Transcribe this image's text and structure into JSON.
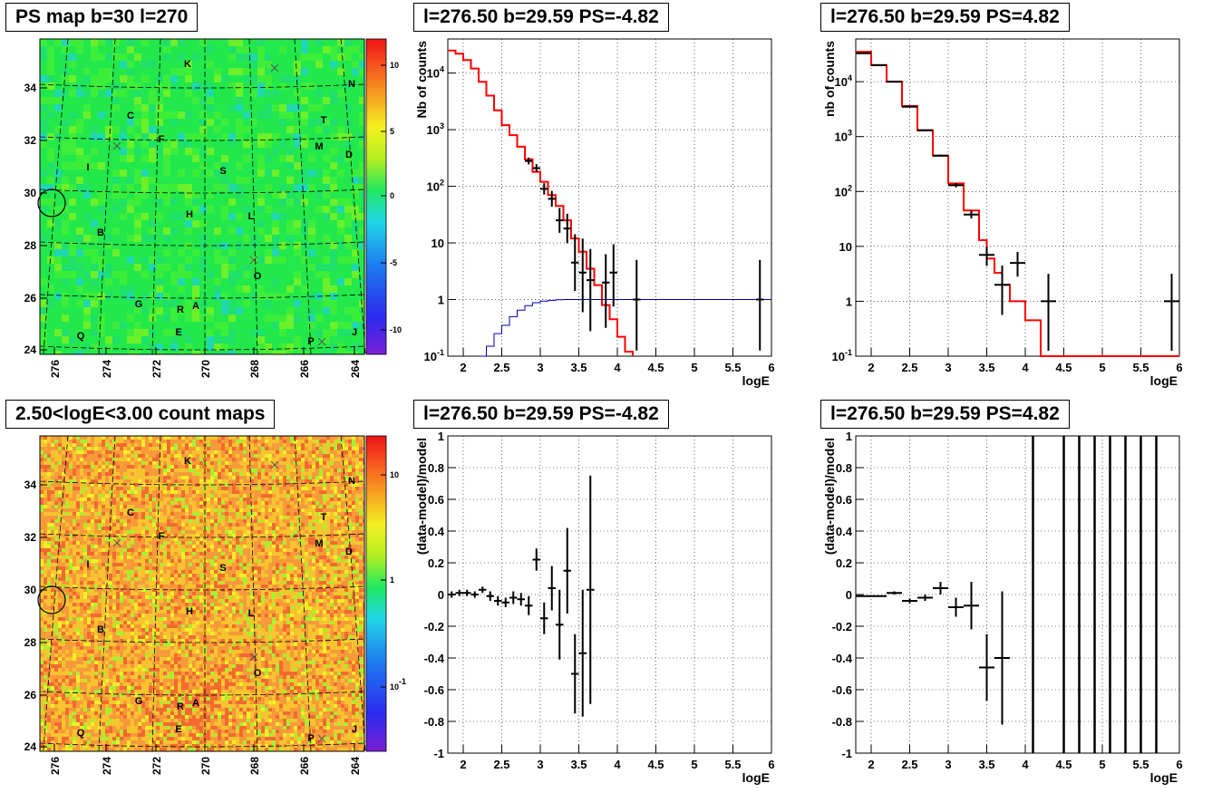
{
  "colors": {
    "fit_red": "#ff0000",
    "model_blue": "#0000aa",
    "data_black": "#000000",
    "map_green": "#1ee84a",
    "count_orange": "#f7a43b"
  },
  "panels": [
    {
      "id": "ps-map",
      "title": "PS map b=30 l=270",
      "chart_data": {
        "type": "heatmap",
        "xlabel": "",
        "ylabel": "",
        "x_ticks": [
          "276",
          "274",
          "272",
          "270",
          "268",
          "266",
          "264"
        ],
        "y_ticks": [
          "24",
          "26",
          "28",
          "30",
          "32",
          "34"
        ],
        "colorbar_ticks": [
          "10",
          "5",
          "0",
          "-5",
          "-10"
        ],
        "colorbar_range": [
          -12,
          12
        ],
        "dominant_value": 1,
        "grid": "dashed",
        "source_labels": [
          "K",
          "N",
          "C",
          "T",
          "F",
          "M",
          "D",
          "I",
          "S",
          "B",
          "H",
          "L",
          "O",
          "G",
          "R",
          "A",
          "E",
          "Q",
          "P",
          "J"
        ],
        "markers": [
          {
            "l": 276.5,
            "b": 29.59,
            "shape": "circle"
          }
        ]
      }
    },
    {
      "id": "spectrum-1",
      "title": "l=276.50 b=29.59 PS=-4.82",
      "chart_data": {
        "type": "line",
        "xlabel": "logE",
        "ylabel": "Nb of counts",
        "xlim": [
          1.8,
          6.0
        ],
        "ylim": [
          0.1,
          40000
        ],
        "y_scale": "log",
        "x_ticks": [
          "2",
          "2.5",
          "3",
          "3.5",
          "4",
          "4.5",
          "5",
          "5.5",
          "6"
        ],
        "y_ticks": [
          "10^{-1}",
          "1",
          "10",
          "10^{2}",
          "10^{3}",
          "10^{4}"
        ],
        "grid": "dotted",
        "series": [
          {
            "kind": "step",
            "color": "red",
            "x": [
              1.8,
              1.9,
              2.0,
              2.1,
              2.2,
              2.3,
              2.4,
              2.5,
              2.6,
              2.7,
              2.8,
              2.9,
              3.0,
              3.1,
              3.2,
              3.3,
              3.4,
              3.5,
              3.6,
              3.7,
              3.8,
              3.9,
              4.0,
              4.1,
              4.2
            ],
            "y": [
              25000,
              22000,
              17000,
              12000,
              7000,
              4000,
              2200,
              1200,
              800,
              500,
              300,
              180,
              120,
              70,
              45,
              25,
              12,
              7,
              3.5,
              1.8,
              0.8,
              0.45,
              0.22,
              0.12,
              0.1
            ]
          },
          {
            "kind": "step",
            "color": "blue",
            "x": [
              2.2,
              2.3,
              2.4,
              2.5,
              2.6,
              2.7,
              2.8,
              2.9,
              3.0,
              3.1,
              3.2,
              3.3,
              3.5,
              6.0
            ],
            "y": [
              0.1,
              0.15,
              0.25,
              0.35,
              0.5,
              0.65,
              0.78,
              0.88,
              0.94,
              0.97,
              0.99,
              1.0,
              1.0,
              1.0
            ]
          },
          {
            "kind": "points",
            "color": "black",
            "x": [
              2.85,
              2.95,
              3.05,
              3.15,
              3.25,
              3.35,
              3.45,
              3.55,
              3.65,
              3.85,
              3.95,
              4.25,
              5.85
            ],
            "y": [
              280,
              210,
              90,
              60,
              25,
              18,
              4.5,
              3,
              2.2,
              2,
              3,
              1,
              1
            ],
            "err_lo": [
              0.06,
              0.07,
              0.1,
              0.14,
              0.22,
              0.26,
              0.5,
              0.7,
              0.9,
              0.8,
              0.6,
              0.9,
              0.9
            ],
            "err_hi": [
              0.06,
              0.07,
              0.1,
              0.14,
              0.22,
              0.26,
              0.5,
              0.6,
              0.55,
              0.5,
              0.5,
              0.7,
              0.7
            ],
            "x_err": 0.05
          }
        ]
      }
    },
    {
      "id": "spectrum-2",
      "title": "l=276.50 b=29.59 PS=4.82",
      "chart_data": {
        "type": "line",
        "xlabel": "logE",
        "ylabel": "nb of counts",
        "xlim": [
          1.8,
          6.0
        ],
        "ylim": [
          0.1,
          60000
        ],
        "y_scale": "log",
        "x_ticks": [
          "2",
          "2.5",
          "3",
          "3.5",
          "4",
          "4.5",
          "5",
          "5.5",
          "6"
        ],
        "y_ticks": [
          "10^{-1}",
          "1",
          "10",
          "10^{2}",
          "10^{3}",
          "10^{4}"
        ],
        "grid": "dotted",
        "series": [
          {
            "kind": "step",
            "color": "red",
            "x": [
              1.8,
              2.0,
              2.2,
              2.4,
              2.6,
              2.8,
              3.0,
              3.2,
              3.4,
              3.5,
              3.6,
              3.7,
              3.8,
              3.9,
              4.0,
              4.2,
              4.5,
              6.0
            ],
            "y": [
              35000,
              20000,
              10000,
              3600,
              1300,
              450,
              140,
              45,
              13,
              6,
              3.3,
              2,
              1,
              1,
              0.45,
              0.1,
              0.1,
              0.1
            ]
          },
          {
            "kind": "points",
            "color": "black",
            "x": [
              1.9,
              2.1,
              2.3,
              2.5,
              2.7,
              2.9,
              3.1,
              3.3,
              3.5,
              3.7,
              3.9,
              4.3,
              5.9
            ],
            "y": [
              33000,
              20000,
              10000,
              3500,
              1300,
              450,
              130,
              38,
              7,
              2,
              5,
              1,
              1
            ],
            "err_lo": [
              0.003,
              0.004,
              0.005,
              0.01,
              0.015,
              0.02,
              0.04,
              0.07,
              0.2,
              0.55,
              0.25,
              0.9,
              0.9
            ],
            "err_hi": [
              0.003,
              0.004,
              0.005,
              0.01,
              0.015,
              0.02,
              0.04,
              0.07,
              0.15,
              0.35,
              0.2,
              0.5,
              0.5
            ],
            "x_err": 0.1
          }
        ]
      }
    },
    {
      "id": "count-map",
      "title": "2.50<logE<3.00 count maps",
      "chart_data": {
        "type": "heatmap",
        "xlabel": "",
        "ylabel": "",
        "x_ticks": [
          "276",
          "274",
          "272",
          "270",
          "268",
          "266",
          "264"
        ],
        "y_ticks": [
          "24",
          "26",
          "28",
          "30",
          "32",
          "34"
        ],
        "colorbar_ticks": [
          "10",
          "1",
          "10^{-1}"
        ],
        "colorbar_scale": "log",
        "dominant_value": 7,
        "grid": "dashed",
        "source_labels": [
          "K",
          "N",
          "C",
          "T",
          "F",
          "M",
          "D",
          "I",
          "S",
          "B",
          "H",
          "L",
          "O",
          "G",
          "R",
          "A",
          "E",
          "Q",
          "P",
          "J"
        ],
        "markers": [
          {
            "l": 276.5,
            "b": 29.59,
            "shape": "circle"
          }
        ]
      }
    },
    {
      "id": "residual-1",
      "title": "l=276.50 b=29.59 PS=-4.82",
      "chart_data": {
        "type": "scatter",
        "xlabel": "logE",
        "ylabel": "(data-model)/model",
        "xlim": [
          1.8,
          6.0
        ],
        "ylim": [
          -1,
          1
        ],
        "x_ticks": [
          "2",
          "2.5",
          "3",
          "3.5",
          "4",
          "4.5",
          "5",
          "5.5",
          "6"
        ],
        "y_ticks": [
          "-1",
          "-0.8",
          "-0.6",
          "-0.4",
          "-0.2",
          "0",
          "0.2",
          "0.4",
          "0.6",
          "0.8",
          "1"
        ],
        "grid": "dotted",
        "series": [
          {
            "kind": "points",
            "color": "black",
            "x": [
              1.85,
              1.95,
              2.05,
              2.15,
              2.25,
              2.35,
              2.45,
              2.55,
              2.65,
              2.75,
              2.85,
              2.95,
              3.05,
              3.15,
              3.25,
              3.35,
              3.45,
              3.55,
              3.65
            ],
            "y": [
              0,
              0.01,
              0.01,
              0.0,
              0.03,
              -0.01,
              -0.04,
              -0.05,
              -0.02,
              -0.03,
              -0.07,
              0.22,
              -0.15,
              0.04,
              -0.19,
              0.15,
              -0.5,
              -0.37,
              0.03
            ],
            "err": [
              0.02,
              0.02,
              0.02,
              0.02,
              0.02,
              0.03,
              0.03,
              0.03,
              0.04,
              0.04,
              0.06,
              0.07,
              0.1,
              0.14,
              0.22,
              0.27,
              0.25,
              0.4,
              0.72
            ],
            "x_err": 0.05
          }
        ]
      }
    },
    {
      "id": "residual-2",
      "title": "l=276.50 b=29.59 PS=4.82",
      "chart_data": {
        "type": "scatter",
        "xlabel": "logE",
        "ylabel": "(data-model)/model",
        "xlim": [
          1.8,
          6.0
        ],
        "ylim": [
          -1,
          1
        ],
        "x_ticks": [
          "2",
          "2.5",
          "3",
          "3.5",
          "4",
          "4.5",
          "5",
          "5.5",
          "6"
        ],
        "y_ticks": [
          "-1",
          "-0.8",
          "-0.6",
          "-0.4",
          "-0.2",
          "0",
          "0.2",
          "0.4",
          "0.6",
          "0.8",
          "1"
        ],
        "grid": "dotted",
        "series": [
          {
            "kind": "points",
            "color": "black",
            "x": [
              1.9,
              2.1,
              2.3,
              2.5,
              2.7,
              2.9,
              3.1,
              3.3,
              3.5,
              3.7
            ],
            "y": [
              -0.01,
              -0.01,
              0.01,
              -0.04,
              -0.02,
              0.04,
              -0.08,
              -0.07,
              -0.46,
              -0.4
            ],
            "err": [
              0.003,
              0.004,
              0.01,
              0.015,
              0.02,
              0.04,
              0.06,
              0.15,
              0.21,
              0.42
            ],
            "x_err": 0.1
          },
          {
            "kind": "vlines",
            "color": "black",
            "x": [
              4.1,
              4.5,
              4.7,
              4.9,
              5.1,
              5.3,
              5.5,
              5.7
            ]
          }
        ]
      }
    }
  ]
}
